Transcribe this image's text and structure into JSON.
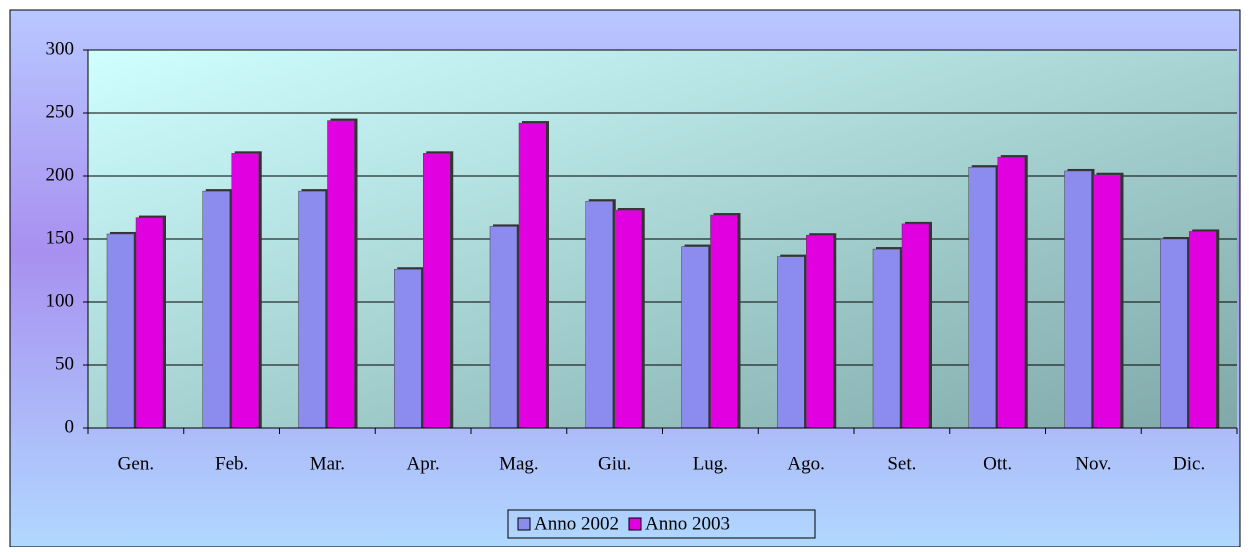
{
  "chart_data": {
    "type": "bar",
    "categories": [
      "Gen.",
      "Feb.",
      "Mar.",
      "Apr.",
      "Mag.",
      "Giu.",
      "Lug.",
      "Ago.",
      "Set.",
      "Ott.",
      "Nov.",
      "Dic."
    ],
    "series": [
      {
        "name": "Anno 2002",
        "color": "#8c8cee",
        "values": [
          154,
          188,
          188,
          126,
          160,
          180,
          144,
          136,
          142,
          207,
          204,
          150
        ]
      },
      {
        "name": "Anno 2003",
        "color": "#e000e0",
        "values": [
          167,
          218,
          244,
          218,
          242,
          173,
          169,
          153,
          162,
          215,
          201,
          156
        ]
      }
    ],
    "ylim": [
      0,
      300
    ],
    "yticks": [
      0,
      50,
      100,
      150,
      200,
      250,
      300
    ],
    "grid": true,
    "legend": "bottom"
  }
}
